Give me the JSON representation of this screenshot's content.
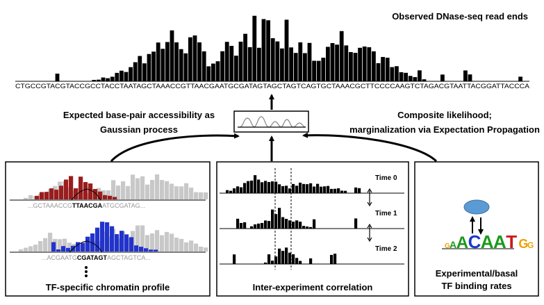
{
  "top": {
    "title": "Observed DNase-seq read ends",
    "sequence": "CTGCCGTACGTACCGCCTACCTAATAGCTAAACCGTTAACGAATGCGATAGTAGCTAGTCAGTGCTAAACGCTTCCCCAAGTCTAGACGTAATTACGGATTACCCA"
  },
  "center": {
    "left_label": [
      "Expected base-pair accessibility as",
      "Gaussian process"
    ],
    "right_label": [
      "Composite likelihood;",
      "marginalization via Expectation Propagation"
    ]
  },
  "panels": [
    {
      "title": [
        "TF-specific chromatin profile"
      ],
      "sequences": [
        {
          "before": "...GCTAAACCG",
          "motif": "TTAACGA",
          "after": "ATGCGATAG..."
        },
        {
          "before": "...ACGAATG",
          "motif": "CGATAGT",
          "after": "AGCTAGTCA..."
        }
      ]
    },
    {
      "title": [
        "Inter-experiment correlation"
      ],
      "times": [
        "Time 0",
        "Time 1",
        "Time 2"
      ]
    },
    {
      "title": [
        "Experimental/basal",
        "TF binding rates"
      ],
      "logo": [
        "G",
        "A",
        "A",
        "C",
        "A",
        "A",
        "T",
        "G",
        "G"
      ]
    }
  ]
}
